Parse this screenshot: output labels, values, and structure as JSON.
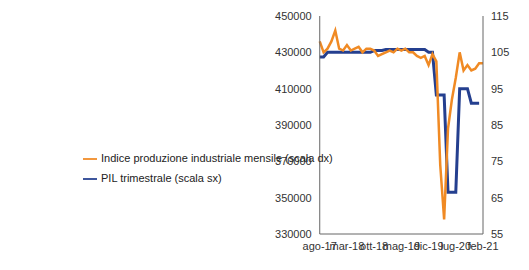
{
  "chart_data": {
    "type": "line",
    "categories": [
      "ago-17",
      null,
      null,
      null,
      null,
      null,
      null,
      "mar-18",
      null,
      null,
      null,
      null,
      null,
      null,
      "ott-18",
      null,
      null,
      null,
      null,
      null,
      null,
      "mag-19",
      null,
      null,
      null,
      null,
      null,
      null,
      "dic-19",
      null,
      null,
      null,
      null,
      null,
      null,
      "lug-20",
      null,
      null,
      null,
      null,
      null,
      null,
      "feb-21"
    ],
    "series": [
      {
        "name": "PIL trimestrale (scala sx)",
        "color": "#243f8f",
        "axis": "y",
        "values": [
          427500,
          427500,
          430000,
          430000,
          430000,
          430000,
          430000,
          430000,
          430000,
          430000,
          430000,
          430000,
          430000,
          430000,
          431000,
          431000,
          431000,
          431500,
          431500,
          431500,
          431500,
          431500,
          431500,
          431500,
          431500,
          431500,
          431500,
          431500,
          430000,
          430000,
          406500,
          406500,
          406500,
          353000,
          353000,
          353000,
          410000,
          410000,
          410000,
          402000,
          402000,
          402000,
          null
        ]
      },
      {
        "name": "Indice produzione industriale mensile (scala dx)",
        "color": "#f08a24",
        "axis": "y2",
        "values": [
          108,
          105,
          106,
          108,
          111,
          106,
          105.5,
          107,
          105.5,
          106,
          106.5,
          105,
          106,
          106,
          105.5,
          104,
          104.5,
          105,
          105.5,
          105,
          106,
          105.5,
          106,
          105,
          105,
          104,
          103.5,
          104,
          101.5,
          104.5,
          102.5,
          74,
          59,
          84,
          92,
          98,
          105,
          100,
          101.5,
          100,
          100.5,
          102,
          102
        ]
      }
    ],
    "ylim": [
      330000,
      450000
    ],
    "yticks": [
      330000,
      350000,
      370000,
      390000,
      410000,
      430000,
      450000
    ],
    "y2lim": [
      55,
      115
    ],
    "y2ticks": [
      55,
      65,
      75,
      85,
      95,
      105,
      115
    ],
    "grid": false,
    "legend": "left"
  }
}
